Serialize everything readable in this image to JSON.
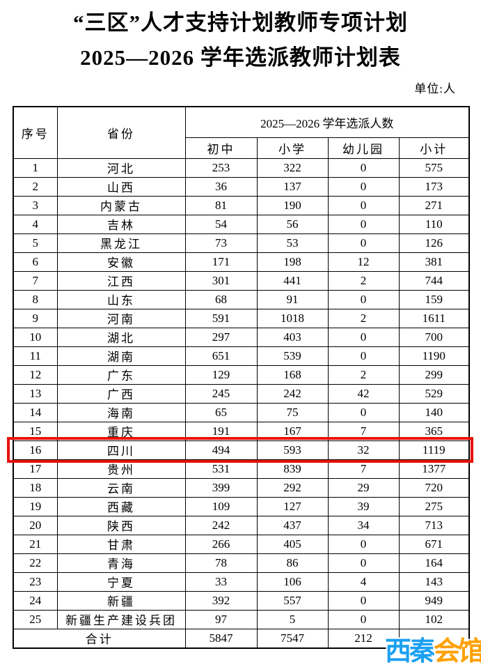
{
  "page": {
    "title_line1": "“三区”人才支持计划教师专项计划",
    "title_line2": "2025—2026 学年选派教师计划表",
    "unit_label": "单位:人"
  },
  "table": {
    "headers": {
      "col_index": "序号",
      "col_province": "省份",
      "group": "2025—2026 学年选派人数",
      "sub": [
        "初中",
        "小学",
        "幼儿园",
        "小计"
      ]
    },
    "rows": [
      {
        "no": "1",
        "province": "河北",
        "junior": "253",
        "primary": "322",
        "kindergarten": "0",
        "subtotal": "575"
      },
      {
        "no": "2",
        "province": "山西",
        "junior": "36",
        "primary": "137",
        "kindergarten": "0",
        "subtotal": "173"
      },
      {
        "no": "3",
        "province": "内蒙古",
        "junior": "81",
        "primary": "190",
        "kindergarten": "0",
        "subtotal": "271"
      },
      {
        "no": "4",
        "province": "吉林",
        "junior": "54",
        "primary": "56",
        "kindergarten": "0",
        "subtotal": "110"
      },
      {
        "no": "5",
        "province": "黑龙江",
        "junior": "73",
        "primary": "53",
        "kindergarten": "0",
        "subtotal": "126"
      },
      {
        "no": "6",
        "province": "安徽",
        "junior": "171",
        "primary": "198",
        "kindergarten": "12",
        "subtotal": "381"
      },
      {
        "no": "7",
        "province": "江西",
        "junior": "301",
        "primary": "441",
        "kindergarten": "2",
        "subtotal": "744"
      },
      {
        "no": "8",
        "province": "山东",
        "junior": "68",
        "primary": "91",
        "kindergarten": "0",
        "subtotal": "159"
      },
      {
        "no": "9",
        "province": "河南",
        "junior": "591",
        "primary": "1018",
        "kindergarten": "2",
        "subtotal": "1611"
      },
      {
        "no": "10",
        "province": "湖北",
        "junior": "297",
        "primary": "403",
        "kindergarten": "0",
        "subtotal": "700"
      },
      {
        "no": "11",
        "province": "湖南",
        "junior": "651",
        "primary": "539",
        "kindergarten": "0",
        "subtotal": "1190"
      },
      {
        "no": "12",
        "province": "广东",
        "junior": "129",
        "primary": "168",
        "kindergarten": "2",
        "subtotal": "299"
      },
      {
        "no": "13",
        "province": "广西",
        "junior": "245",
        "primary": "242",
        "kindergarten": "42",
        "subtotal": "529"
      },
      {
        "no": "14",
        "province": "海南",
        "junior": "65",
        "primary": "75",
        "kindergarten": "0",
        "subtotal": "140"
      },
      {
        "no": "15",
        "province": "重庆",
        "junior": "191",
        "primary": "167",
        "kindergarten": "7",
        "subtotal": "365"
      },
      {
        "no": "16",
        "province": "四川",
        "junior": "494",
        "primary": "593",
        "kindergarten": "32",
        "subtotal": "1119"
      },
      {
        "no": "17",
        "province": "贵州",
        "junior": "531",
        "primary": "839",
        "kindergarten": "7",
        "subtotal": "1377"
      },
      {
        "no": "18",
        "province": "云南",
        "junior": "399",
        "primary": "292",
        "kindergarten": "29",
        "subtotal": "720"
      },
      {
        "no": "19",
        "province": "西藏",
        "junior": "109",
        "primary": "127",
        "kindergarten": "39",
        "subtotal": "275"
      },
      {
        "no": "20",
        "province": "陕西",
        "junior": "242",
        "primary": "437",
        "kindergarten": "34",
        "subtotal": "713"
      },
      {
        "no": "21",
        "province": "甘肃",
        "junior": "266",
        "primary": "405",
        "kindergarten": "0",
        "subtotal": "671"
      },
      {
        "no": "22",
        "province": "青海",
        "junior": "78",
        "primary": "86",
        "kindergarten": "0",
        "subtotal": "164"
      },
      {
        "no": "23",
        "province": "宁夏",
        "junior": "33",
        "primary": "106",
        "kindergarten": "4",
        "subtotal": "143"
      },
      {
        "no": "24",
        "province": "新疆",
        "junior": "392",
        "primary": "557",
        "kindergarten": "0",
        "subtotal": "949"
      },
      {
        "no": "25",
        "province": "新疆生产建设兵团",
        "junior": "97",
        "primary": "5",
        "kindergarten": "0",
        "subtotal": "102"
      }
    ],
    "total": {
      "label": "合计",
      "junior": "5847",
      "primary": "7547",
      "kindergarten": "212",
      "subtotal": ""
    }
  },
  "highlight": {
    "row_no": 16,
    "color": "#e8120c"
  },
  "watermark": {
    "part1": "西秦",
    "part2": "会馆",
    "color_blue": "#1ba0f2",
    "color_orange": "#ffa000"
  }
}
